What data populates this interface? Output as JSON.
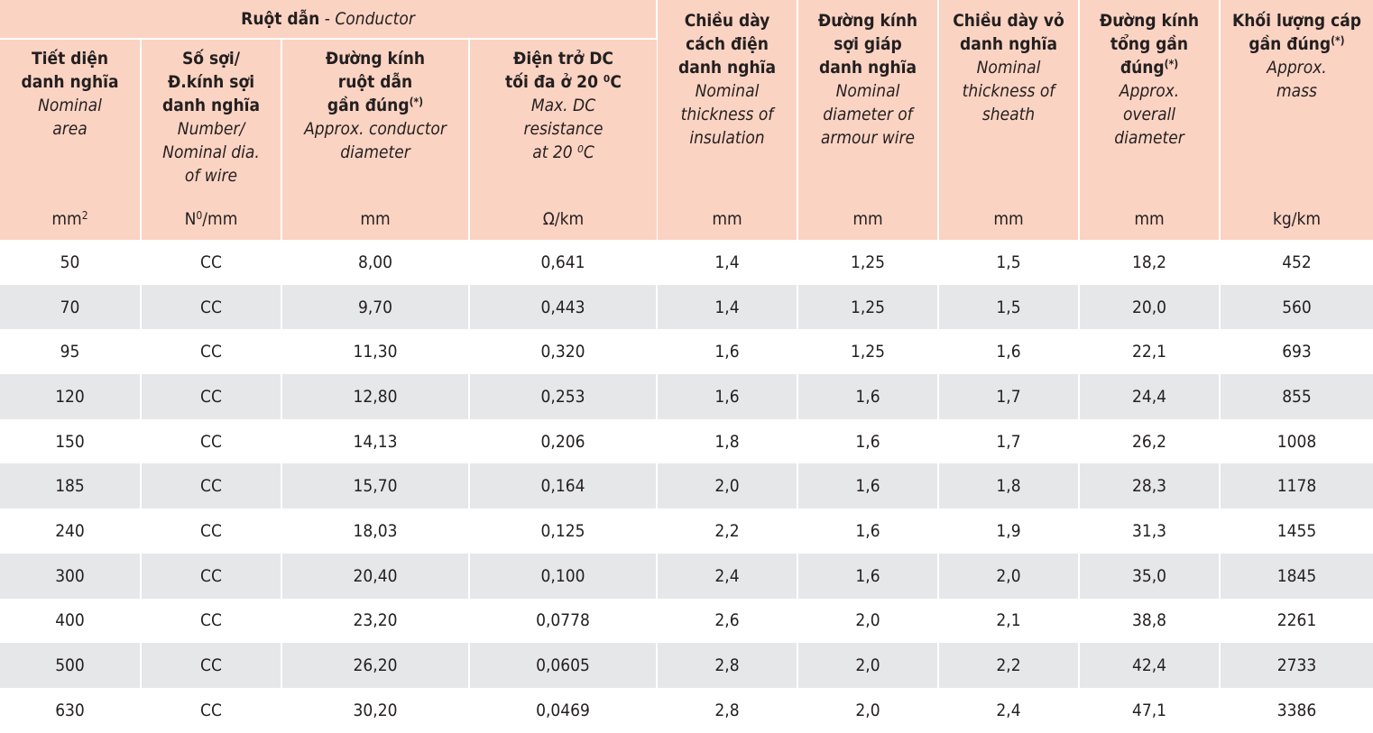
{
  "header": {
    "conductor_group_vi": "Ruột dẫn",
    "conductor_group_sep": " - ",
    "conductor_group_en": "Conductor",
    "columns": [
      {
        "vi": [
          "Tiết diện",
          "danh nghĩa"
        ],
        "sup": "",
        "en": [
          "Nominal",
          "area"
        ],
        "unit": "mm",
        "unit_sup": "2"
      },
      {
        "vi": [
          "Số sợi/",
          "Đ.kính sợi",
          "danh nghĩa"
        ],
        "sup": "",
        "en": [
          "Number/",
          "Nominal dia.",
          "of wire"
        ],
        "unit": "N",
        "unit_sup": "0",
        "unit_after": "/mm"
      },
      {
        "vi": [
          "Đường kính",
          "ruột dẫn",
          "gần đúng"
        ],
        "sup": "(*)",
        "en": [
          "Approx. conductor",
          "diameter"
        ],
        "unit": "mm"
      },
      {
        "vi": [
          "Điện trở DC",
          "tối đa ở 20 ⁰C"
        ],
        "sup": "",
        "en": [
          "Max. DC",
          "resistance",
          "at 20 ⁰C"
        ],
        "unit": "Ω/km"
      },
      {
        "vi": [
          "Chiều dày",
          "cách điện",
          "danh nghĩa"
        ],
        "sup": "",
        "en": [
          "Nominal",
          "thickness of",
          "insulation"
        ],
        "unit": "mm"
      },
      {
        "vi": [
          "Đường kính",
          "sợi giáp",
          "danh nghĩa"
        ],
        "sup": "",
        "en": [
          "Nominal",
          "diameter of",
          "armour wire"
        ],
        "unit": "mm"
      },
      {
        "vi": [
          "Chiều dày vỏ",
          "danh nghĩa"
        ],
        "sup": "",
        "en": [
          "Nominal",
          "thickness of",
          "sheath"
        ],
        "unit": "mm"
      },
      {
        "vi": [
          "Đường kính",
          "tổng gần",
          "đúng"
        ],
        "sup": "(*)",
        "en": [
          "Approx.",
          "overall",
          "diameter"
        ],
        "unit": "mm"
      },
      {
        "vi": [
          "Khối lượng cáp",
          "gần đúng"
        ],
        "sup": "(*)",
        "en": [
          "Approx.",
          "mass"
        ],
        "unit": "kg/km"
      }
    ]
  },
  "rows": [
    [
      "50",
      "CC",
      "8,00",
      "0,641",
      "1,4",
      "1,25",
      "1,5",
      "18,2",
      "452"
    ],
    [
      "70",
      "CC",
      "9,70",
      "0,443",
      "1,4",
      "1,25",
      "1,5",
      "20,0",
      "560"
    ],
    [
      "95",
      "CC",
      "11,30",
      "0,320",
      "1,6",
      "1,25",
      "1,6",
      "22,1",
      "693"
    ],
    [
      "120",
      "CC",
      "12,80",
      "0,253",
      "1,6",
      "1,6",
      "1,7",
      "24,4",
      "855"
    ],
    [
      "150",
      "CC",
      "14,13",
      "0,206",
      "1,8",
      "1,6",
      "1,7",
      "26,2",
      "1008"
    ],
    [
      "185",
      "CC",
      "15,70",
      "0,164",
      "2,0",
      "1,6",
      "1,8",
      "28,3",
      "1178"
    ],
    [
      "240",
      "CC",
      "18,03",
      "0,125",
      "2,2",
      "1,6",
      "1,9",
      "31,3",
      "1455"
    ],
    [
      "300",
      "CC",
      "20,40",
      "0,100",
      "2,4",
      "1,6",
      "2,0",
      "35,0",
      "1845"
    ],
    [
      "400",
      "CC",
      "23,20",
      "0,0778",
      "2,6",
      "2,0",
      "2,1",
      "38,8",
      "2261"
    ],
    [
      "500",
      "CC",
      "26,20",
      "0,0605",
      "2,8",
      "2,0",
      "2,2",
      "42,4",
      "2733"
    ],
    [
      "630",
      "CC",
      "30,20",
      "0,0469",
      "2,8",
      "2,0",
      "2,4",
      "47,1",
      "3386"
    ]
  ],
  "colors": {
    "header_bg": "#fbd3c2",
    "stripe_bg": "#e6e7e9",
    "text": "#231f20"
  }
}
